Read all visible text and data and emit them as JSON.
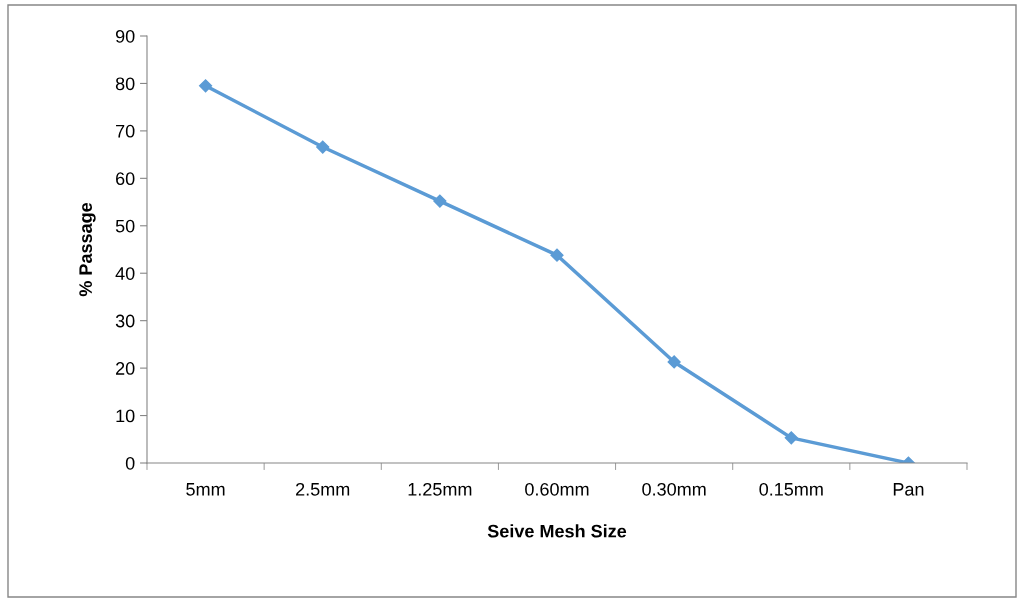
{
  "chart_data": {
    "type": "line",
    "xlabel": "Seive Mesh Size",
    "ylabel": "% Passage",
    "categories": [
      "5mm",
      "2.5mm",
      "1.25mm",
      "0.60mm",
      "0.30mm",
      "0.15mm",
      "Pan"
    ],
    "series": [
      {
        "color": "#5b9bd5",
        "values": [
          79.5,
          66.6,
          55.2,
          43.8,
          21.3,
          5.3,
          0
        ]
      }
    ],
    "ylim": [
      0,
      90
    ],
    "yticks": [
      0,
      10,
      20,
      30,
      40,
      50,
      60,
      70,
      80,
      90
    ],
    "grid": false,
    "legend": false,
    "marker": "diamond",
    "line_style": "solid"
  }
}
